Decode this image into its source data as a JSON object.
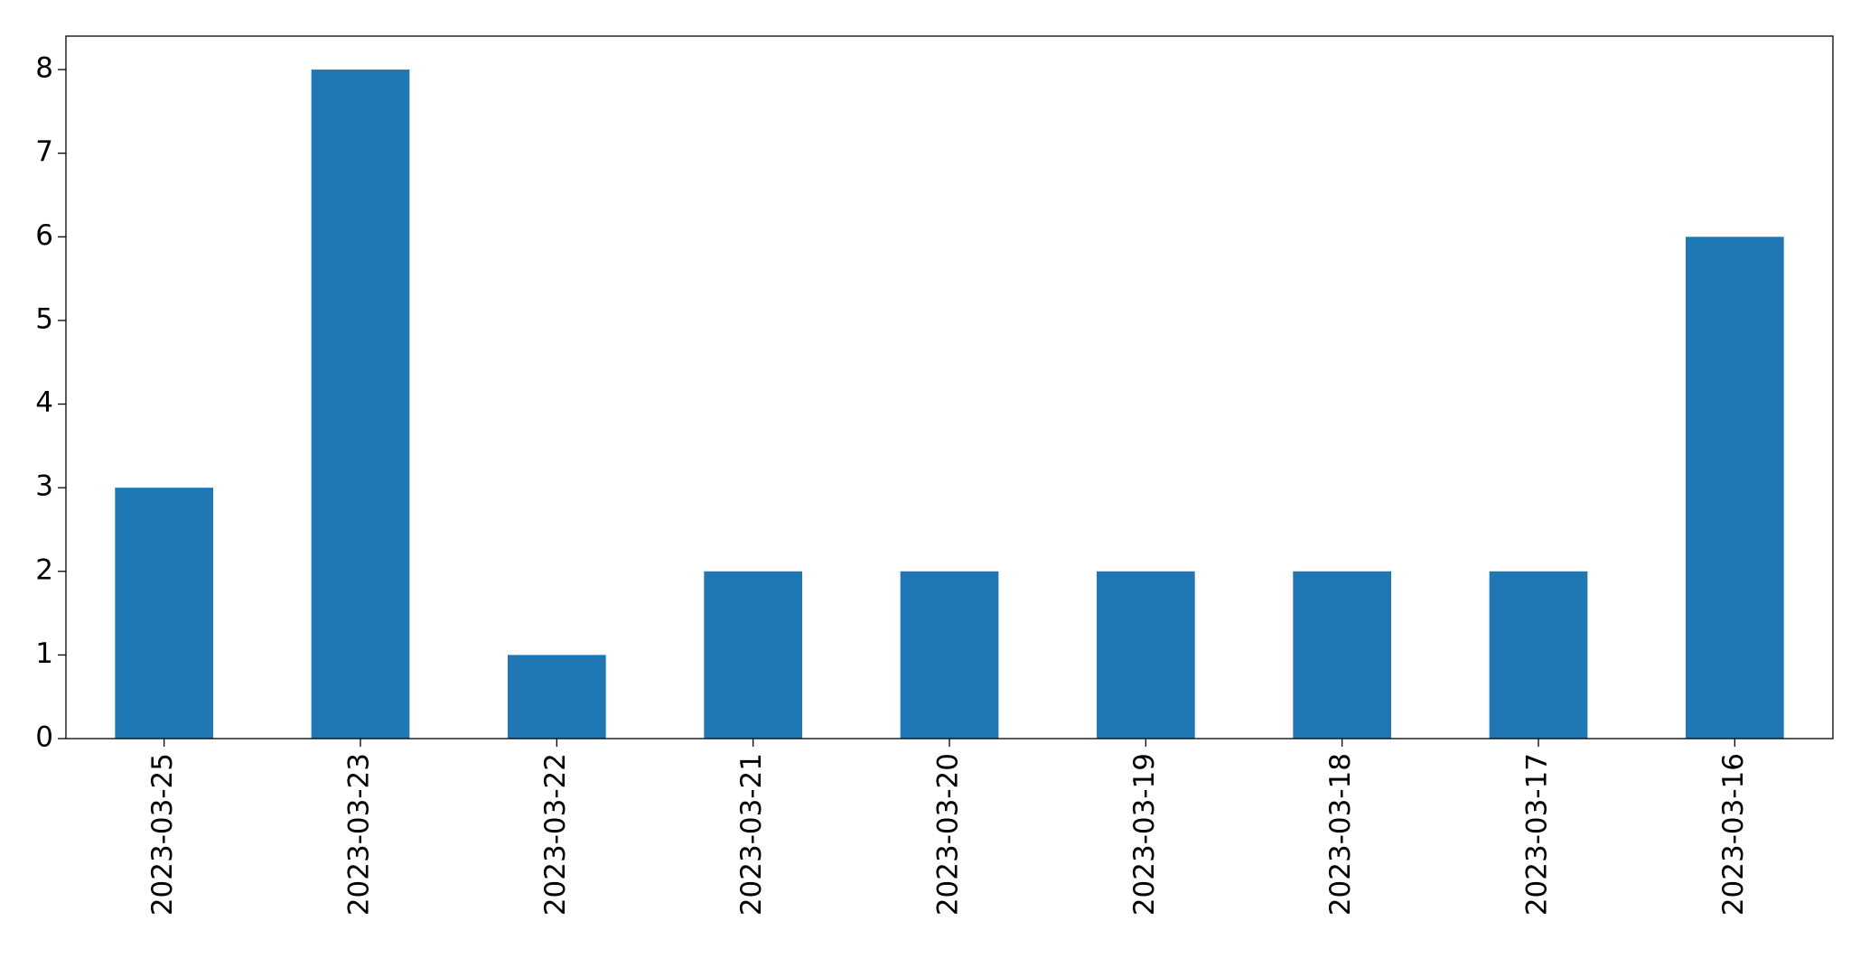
{
  "chart_data": {
    "type": "bar",
    "categories": [
      "2023-03-25",
      "2023-03-23",
      "2023-03-22",
      "2023-03-21",
      "2023-03-20",
      "2023-03-19",
      "2023-03-18",
      "2023-03-17",
      "2023-03-16"
    ],
    "values": [
      3,
      8,
      1,
      2,
      2,
      2,
      2,
      2,
      6
    ],
    "color": "#1f77b4",
    "ylim": [
      0,
      8.4
    ],
    "yticks": [
      0,
      1,
      2,
      3,
      4,
      5,
      6,
      7,
      8
    ],
    "grid": false
  }
}
